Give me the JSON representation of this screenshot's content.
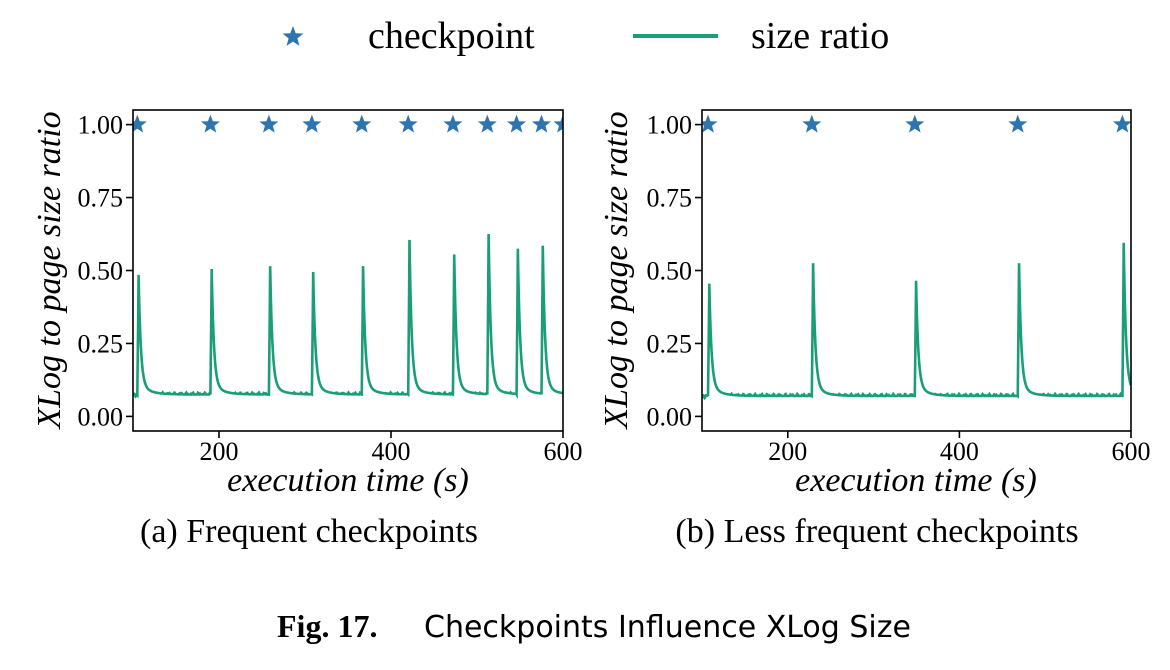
{
  "colors": {
    "checkpoint": "#2e75b0",
    "size_ratio": "#1a9e77",
    "axis": "#000000"
  },
  "legend": {
    "checkpoint_label": "checkpoint",
    "size_ratio_label": "size ratio"
  },
  "caption": {
    "figure_number": "Fig. 17.",
    "title": "Checkpoints Influence XLog Size"
  },
  "chart_data": [
    {
      "type": "line",
      "subcaption": "(a) Frequent checkpoints",
      "xlabel": "execution time (s)",
      "ylabel": "XLog to page size ratio",
      "xlim": [
        100,
        600
      ],
      "ylim": [
        -0.05,
        1.05
      ],
      "xticks": [
        200,
        400,
        600
      ],
      "yticks": [
        0.0,
        0.25,
        0.5,
        0.75,
        1.0
      ],
      "ytick_labels": [
        "0.00",
        "0.25",
        "0.50",
        "0.75",
        "1.00"
      ],
      "grid": false,
      "baseline": 0.075,
      "series": [
        {
          "name": "checkpoint",
          "marker": "star",
          "y": 1.0,
          "x": [
            105,
            190,
            258,
            308,
            366,
            420,
            472,
            512,
            546,
            575,
            600
          ]
        },
        {
          "name": "size ratio",
          "style": "line",
          "peaks": [
            {
              "x": 105,
              "y": 0.45
            },
            {
              "x": 190,
              "y": 0.47
            },
            {
              "x": 258,
              "y": 0.48
            },
            {
              "x": 308,
              "y": 0.46
            },
            {
              "x": 366,
              "y": 0.48
            },
            {
              "x": 420,
              "y": 0.57
            },
            {
              "x": 472,
              "y": 0.52
            },
            {
              "x": 512,
              "y": 0.59
            },
            {
              "x": 546,
              "y": 0.54
            },
            {
              "x": 575,
              "y": 0.55
            }
          ]
        }
      ]
    },
    {
      "type": "line",
      "subcaption": "(b) Less frequent checkpoints",
      "xlabel": "execution time (s)",
      "ylabel": "XLog to page size ratio",
      "xlim": [
        100,
        600
      ],
      "ylim": [
        -0.05,
        1.05
      ],
      "xticks": [
        200,
        400,
        600
      ],
      "yticks": [
        0.0,
        0.25,
        0.5,
        0.75,
        1.0
      ],
      "ytick_labels": [
        "0.00",
        "0.25",
        "0.50",
        "0.75",
        "1.00"
      ],
      "grid": false,
      "baseline": 0.07,
      "series": [
        {
          "name": "checkpoint",
          "marker": "star",
          "y": 1.0,
          "x": [
            107,
            228,
            348,
            468,
            590
          ]
        },
        {
          "name": "size ratio",
          "style": "line",
          "peaks": [
            {
              "x": 107,
              "y": 0.42
            },
            {
              "x": 228,
              "y": 0.49
            },
            {
              "x": 348,
              "y": 0.43
            },
            {
              "x": 468,
              "y": 0.49
            },
            {
              "x": 590,
              "y": 0.56
            }
          ]
        }
      ]
    }
  ]
}
